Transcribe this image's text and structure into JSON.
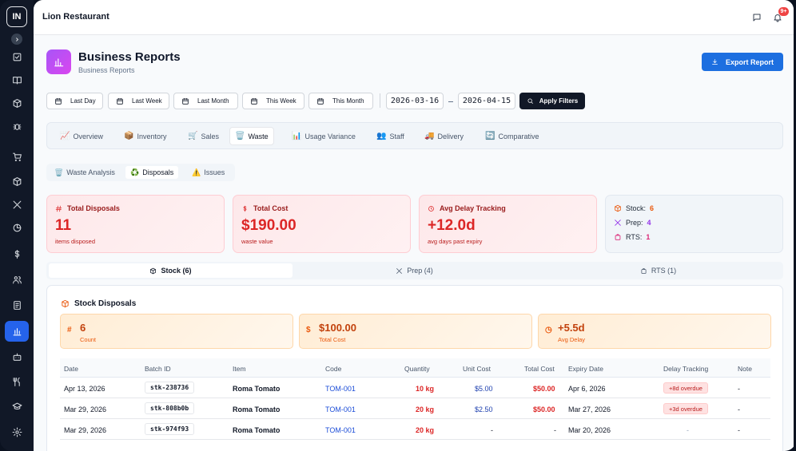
{
  "app": {
    "restaurant": "Lion Restaurant",
    "logo_text": "IN",
    "notification_badge": "9+"
  },
  "header": {
    "title": "Business Reports",
    "subtitle": "Business Reports",
    "export_label": "Export Report"
  },
  "filters": {
    "presets": [
      "Last Day",
      "Last Week",
      "Last Month",
      "This Week",
      "This Month"
    ],
    "start_date": "2026-03-16",
    "end_date": "2026-04-15",
    "apply_label": "Apply Filters"
  },
  "tabs": [
    {
      "label": "Overview",
      "emoji": "📈"
    },
    {
      "label": "Inventory",
      "emoji": "📦"
    },
    {
      "label": "Sales",
      "emoji": "🛒"
    },
    {
      "label": "Waste",
      "emoji": "🗑️",
      "active": true
    },
    {
      "label": "Usage Variance",
      "emoji": "📊"
    },
    {
      "label": "Staff",
      "emoji": "👥"
    },
    {
      "label": "Delivery",
      "emoji": "🚚"
    },
    {
      "label": "Comparative",
      "emoji": "🔄"
    }
  ],
  "subtabs": [
    {
      "label": "Waste Analysis",
      "emoji": "🗑️"
    },
    {
      "label": "Disposals",
      "emoji": "♻️",
      "active": true
    },
    {
      "label": "Issues",
      "emoji": "⚠️"
    }
  ],
  "cards": {
    "total_disposals": {
      "title": "Total Disposals",
      "value": "11",
      "note": "items disposed"
    },
    "total_cost": {
      "title": "Total Cost",
      "value": "$190.00",
      "note": "waste value"
    },
    "avg_delay": {
      "title": "Avg Delay Tracking",
      "value": "+12.0d",
      "note": "avg days past expiry"
    },
    "breakdown": {
      "stock_label": "Stock:",
      "stock_value": "6",
      "prep_label": "Prep:",
      "prep_value": "4",
      "rts_label": "RTS:",
      "rts_value": "1"
    }
  },
  "segments": [
    {
      "label": "Stock (6)",
      "active": true
    },
    {
      "label": "Prep (4)"
    },
    {
      "label": "RTS (1)"
    }
  ],
  "panel": {
    "title": "Stock Disposals",
    "stats": [
      {
        "symbol": "#",
        "value": "6",
        "label": "Count"
      },
      {
        "symbol": "$",
        "value": "$100.00",
        "label": "Total Cost"
      },
      {
        "symbol": "◷",
        "value": "+5.5d",
        "label": "Avg Delay"
      }
    ],
    "columns": [
      "Date",
      "Batch ID",
      "Item",
      "Code",
      "Quantity",
      "Unit Cost",
      "Total Cost",
      "Expiry Date",
      "Delay Tracking",
      "Note"
    ],
    "rows": [
      {
        "date": "Apr 13, 2026",
        "batch": "stk-238736",
        "item": "Roma Tomato",
        "code": "TOM-001",
        "qty": "10 kg",
        "unit_cost": "$5.00",
        "total_cost": "$50.00",
        "expiry": "Apr 6, 2026",
        "delay": "+8d overdue",
        "note": "-"
      },
      {
        "date": "Mar 29, 2026",
        "batch": "stk-808b0b",
        "item": "Roma Tomato",
        "code": "TOM-001",
        "qty": "20 kg",
        "unit_cost": "$2.50",
        "total_cost": "$50.00",
        "expiry": "Mar 27, 2026",
        "delay": "+3d overdue",
        "note": "-"
      },
      {
        "date": "Mar 29, 2026",
        "batch": "stk-974f93",
        "item": "Roma Tomato",
        "code": "TOM-001",
        "qty": "20 kg",
        "unit_cost": "-",
        "total_cost": "-",
        "expiry": "Mar 20, 2026",
        "delay": "-",
        "note": "-"
      }
    ]
  }
}
